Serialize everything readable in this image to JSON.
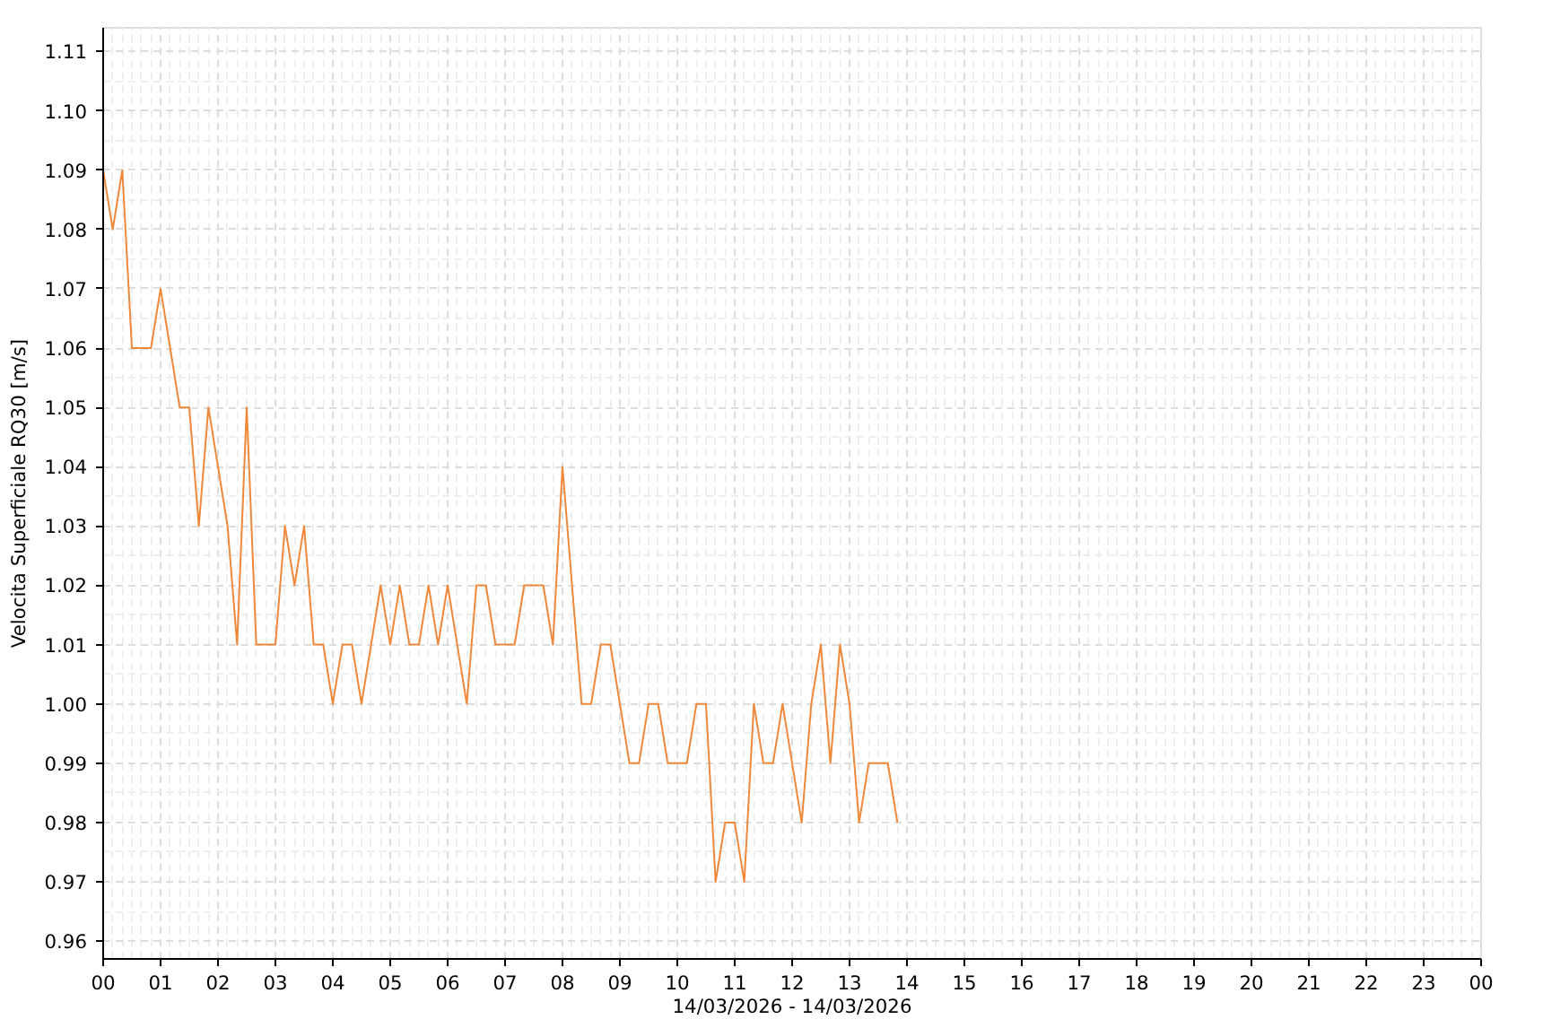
{
  "chart_data": {
    "type": "line",
    "xlabel": "14/03/2026 - 14/03/2026",
    "ylabel": "Velocita Superficiale RQ30 [m/s]",
    "x": [
      "2026-03-14T00:00",
      "2026-03-14T00:10",
      "2026-03-14T00:20",
      "2026-03-14T00:30",
      "2026-03-14T00:40",
      "2026-03-14T00:50",
      "2026-03-14T01:00",
      "2026-03-14T01:10",
      "2026-03-14T01:20",
      "2026-03-14T01:30",
      "2026-03-14T01:40",
      "2026-03-14T01:50",
      "2026-03-14T02:00",
      "2026-03-14T02:10",
      "2026-03-14T02:20",
      "2026-03-14T02:30",
      "2026-03-14T02:40",
      "2026-03-14T02:50",
      "2026-03-14T03:00",
      "2026-03-14T03:10",
      "2026-03-14T03:20",
      "2026-03-14T03:30",
      "2026-03-14T03:40",
      "2026-03-14T03:50",
      "2026-03-14T04:00",
      "2026-03-14T04:10",
      "2026-03-14T04:20",
      "2026-03-14T04:30",
      "2026-03-14T04:40",
      "2026-03-14T04:50",
      "2026-03-14T05:00",
      "2026-03-14T05:10",
      "2026-03-14T05:20",
      "2026-03-14T05:30",
      "2026-03-14T05:40",
      "2026-03-14T05:50",
      "2026-03-14T06:00",
      "2026-03-14T06:10",
      "2026-03-14T06:20",
      "2026-03-14T06:30",
      "2026-03-14T06:40",
      "2026-03-14T06:50",
      "2026-03-14T07:00",
      "2026-03-14T07:10",
      "2026-03-14T07:20",
      "2026-03-14T07:30",
      "2026-03-14T07:40",
      "2026-03-14T07:50",
      "2026-03-14T08:00",
      "2026-03-14T08:10",
      "2026-03-14T08:20",
      "2026-03-14T08:30",
      "2026-03-14T08:40",
      "2026-03-14T08:50",
      "2026-03-14T09:00",
      "2026-03-14T09:10",
      "2026-03-14T09:20",
      "2026-03-14T09:30",
      "2026-03-14T09:40",
      "2026-03-14T09:50",
      "2026-03-14T10:00",
      "2026-03-14T10:10",
      "2026-03-14T10:20",
      "2026-03-14T10:30",
      "2026-03-14T10:40",
      "2026-03-14T10:50",
      "2026-03-14T11:00",
      "2026-03-14T11:10",
      "2026-03-14T11:20",
      "2026-03-14T11:30",
      "2026-03-14T11:40",
      "2026-03-14T11:50",
      "2026-03-14T12:00",
      "2026-03-14T12:10",
      "2026-03-14T12:20",
      "2026-03-14T12:30",
      "2026-03-14T12:40",
      "2026-03-14T12:50",
      "2026-03-14T13:00",
      "2026-03-14T13:10",
      "2026-03-14T13:20",
      "2026-03-14T13:30",
      "2026-03-14T13:40",
      "2026-03-14T13:50"
    ],
    "series": [
      {
        "color": "#f0883a",
        "values": [
          1.09,
          1.08,
          1.09,
          1.06,
          1.06,
          1.06,
          1.07,
          1.06,
          1.05,
          1.05,
          1.03,
          1.05,
          1.04,
          1.03,
          1.01,
          1.05,
          1.01,
          1.01,
          1.01,
          1.03,
          1.02,
          1.03,
          1.01,
          1.01,
          1.0,
          1.01,
          1.01,
          1.0,
          1.01,
          1.02,
          1.01,
          1.02,
          1.01,
          1.01,
          1.02,
          1.01,
          1.02,
          1.01,
          1.0,
          1.02,
          1.02,
          1.01,
          1.01,
          1.01,
          1.02,
          1.02,
          1.02,
          1.01,
          1.04,
          1.02,
          1.0,
          1.0,
          1.01,
          1.01,
          1.0,
          0.99,
          0.99,
          1.0,
          1.0,
          0.99,
          0.99,
          0.99,
          1.0,
          1.0,
          0.97,
          0.98,
          0.98,
          0.97,
          1.0,
          0.99,
          0.99,
          1.0,
          0.99,
          0.98,
          1.0,
          1.01,
          0.99,
          1.01,
          1.0,
          0.98,
          0.99,
          0.99,
          0.99,
          0.98
        ]
      }
    ],
    "xlim": [
      "2026-03-14T00:00",
      "2026-03-15T00:00"
    ],
    "xticks": [
      {
        "value": "2026-03-14T00:00",
        "label": "00"
      },
      {
        "value": "2026-03-14T01:00",
        "label": "01"
      },
      {
        "value": "2026-03-14T02:00",
        "label": "02"
      },
      {
        "value": "2026-03-14T03:00",
        "label": "03"
      },
      {
        "value": "2026-03-14T04:00",
        "label": "04"
      },
      {
        "value": "2026-03-14T05:00",
        "label": "05"
      },
      {
        "value": "2026-03-14T06:00",
        "label": "06"
      },
      {
        "value": "2026-03-14T07:00",
        "label": "07"
      },
      {
        "value": "2026-03-14T08:00",
        "label": "08"
      },
      {
        "value": "2026-03-14T09:00",
        "label": "09"
      },
      {
        "value": "2026-03-14T10:00",
        "label": "10"
      },
      {
        "value": "2026-03-14T11:00",
        "label": "11"
      },
      {
        "value": "2026-03-14T12:00",
        "label": "12"
      },
      {
        "value": "2026-03-14T13:00",
        "label": "13"
      },
      {
        "value": "2026-03-14T14:00",
        "label": "14"
      },
      {
        "value": "2026-03-14T15:00",
        "label": "15"
      },
      {
        "value": "2026-03-14T16:00",
        "label": "16"
      },
      {
        "value": "2026-03-14T17:00",
        "label": "17"
      },
      {
        "value": "2026-03-14T18:00",
        "label": "18"
      },
      {
        "value": "2026-03-14T19:00",
        "label": "19"
      },
      {
        "value": "2026-03-14T20:00",
        "label": "20"
      },
      {
        "value": "2026-03-14T21:00",
        "label": "21"
      },
      {
        "value": "2026-03-14T22:00",
        "label": "22"
      },
      {
        "value": "2026-03-14T23:00",
        "label": "23"
      },
      {
        "value": "2026-03-15T00:00",
        "label": "00"
      }
    ],
    "ylim": [
      0.957,
      1.114
    ],
    "yticks": [
      {
        "value": 0.96,
        "label": "0.96"
      },
      {
        "value": 0.97,
        "label": "0.97"
      },
      {
        "value": 0.98,
        "label": "0.98"
      },
      {
        "value": 0.99,
        "label": "0.99"
      },
      {
        "value": 1.0,
        "label": "1.00"
      },
      {
        "value": 1.01,
        "label": "1.01"
      },
      {
        "value": 1.02,
        "label": "1.02"
      },
      {
        "value": 1.03,
        "label": "1.03"
      },
      {
        "value": 1.04,
        "label": "1.04"
      },
      {
        "value": 1.05,
        "label": "1.05"
      },
      {
        "value": 1.06,
        "label": "1.06"
      },
      {
        "value": 1.07,
        "label": "1.07"
      },
      {
        "value": 1.08,
        "label": "1.08"
      },
      {
        "value": 1.09,
        "label": "1.09"
      },
      {
        "value": 1.1,
        "label": "1.10"
      },
      {
        "value": 1.11,
        "label": "1.11"
      }
    ],
    "grid": true,
    "marker": "none",
    "line_style": "solid"
  }
}
